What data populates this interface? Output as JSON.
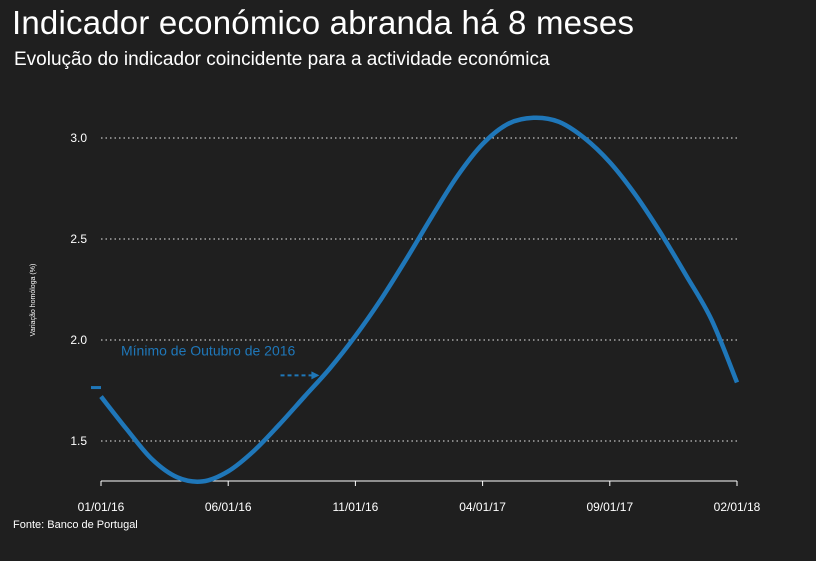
{
  "header": {
    "title": "Indicador económico abranda há 8 meses",
    "subtitle": "Evolução do indicador coincidente para a actividade económica"
  },
  "footer": {
    "source": "Fonte: Banco de Portugal"
  },
  "colors": {
    "background": "#1f1f1f",
    "line": "#1f77b9",
    "text": "#ffffff",
    "grid": "#ffffff"
  },
  "chart_data": {
    "type": "line",
    "title": "Indicador económico abranda há 8 meses",
    "subtitle": "Evolução do indicador coincidente para a actividade económica",
    "xlabel": "",
    "ylabel": "Variação homóloga (%)",
    "ylim": [
      1.3,
      3.2
    ],
    "xlim": [
      "2016-01",
      "2018-02"
    ],
    "yticks": [
      1.5,
      2.0,
      2.5,
      3.0
    ],
    "ytick_labels": [
      "1.5",
      "2.0",
      "2.5",
      "3.0"
    ],
    "xticks": [
      "2016-01",
      "2016-06",
      "2016-11",
      "2017-04",
      "2017-09",
      "2018-02"
    ],
    "xtick_labels": [
      "01/01/16",
      "06/01/16",
      "11/01/16",
      "04/01/17",
      "09/01/17",
      "02/01/18"
    ],
    "grid": true,
    "grid_style": "dotted horizontal",
    "legend": "none",
    "series": [
      {
        "x": [
          "2016-01",
          "2016-02",
          "2016-03",
          "2016-04",
          "2016-05",
          "2016-06",
          "2016-07",
          "2016-08",
          "2016-09",
          "2016-10",
          "2016-11",
          "2016-12",
          "2017-01",
          "2017-02",
          "2017-03",
          "2017-04",
          "2017-05",
          "2017-06",
          "2017-07",
          "2017-08",
          "2017-09",
          "2017-10",
          "2017-11",
          "2017-12",
          "2018-01",
          "2018-02"
        ],
        "values": [
          1.72,
          1.56,
          1.41,
          1.32,
          1.3,
          1.35,
          1.45,
          1.58,
          1.72,
          1.86,
          2.02,
          2.2,
          2.4,
          2.61,
          2.81,
          2.97,
          3.07,
          3.1,
          3.08,
          3.0,
          2.88,
          2.72,
          2.53,
          2.32,
          2.1,
          1.79
        ]
      }
    ],
    "annotations": [
      {
        "text": "Mínimo de Outubro de 2016",
        "from": {
          "x": "2016-09",
          "y": 1.82
        },
        "to": {
          "x": "2016-11",
          "y": 1.82
        }
      }
    ]
  }
}
